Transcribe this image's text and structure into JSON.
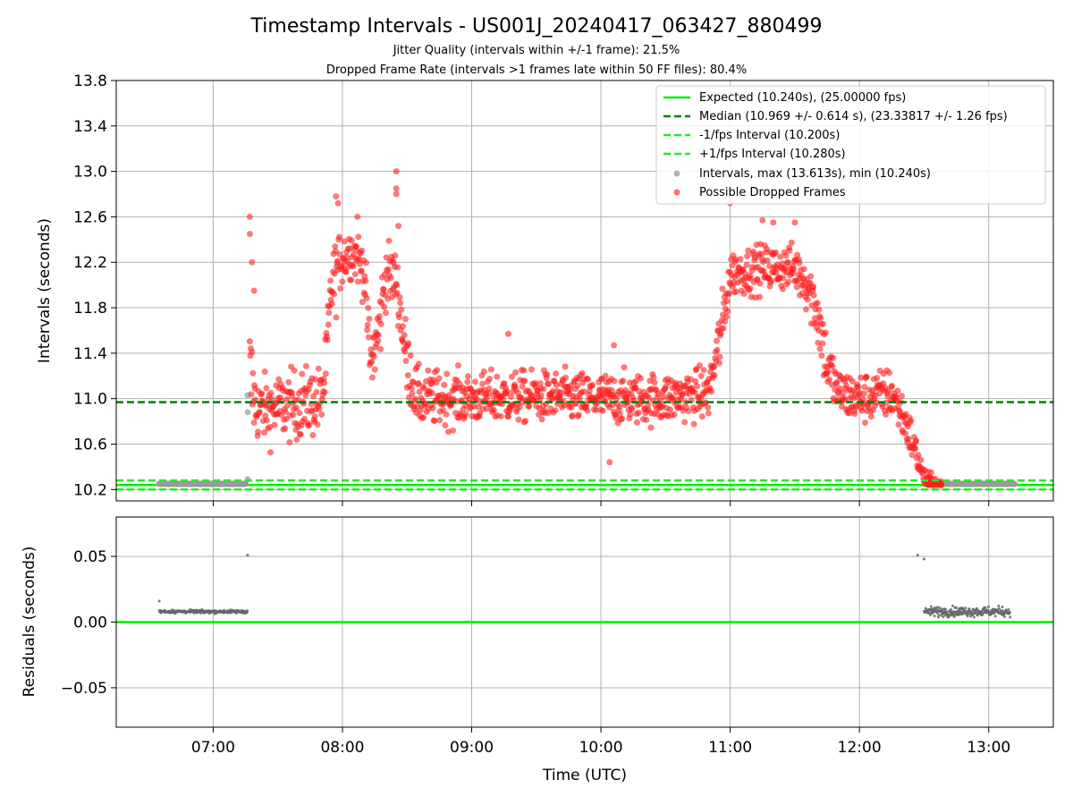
{
  "figure": {
    "title": "Timestamp Intervals - US001J_20240417_063427_880499",
    "subtitle_jitter": "Jitter Quality (intervals within +/-1 frame): 21.5%",
    "subtitle_dropped": "Dropped Frame Rate (intervals >1 frames late within 50 FF files): 80.4%"
  },
  "colors": {
    "expected": "#00ee00",
    "median": "#008000",
    "fps_interval": "#22ee22",
    "intervals": "#9a9a9a",
    "dropped": "#ff2020",
    "residuals": "#666666",
    "grid": "#b0b0b0"
  },
  "chart_data": [
    {
      "type": "scatter",
      "panel": "intervals",
      "xlabel": "",
      "ylabel": "Intervals (seconds)",
      "xlim": [
        "06:15",
        "13:30"
      ],
      "ylim": [
        10.1,
        13.8
      ],
      "yticks": [
        "10.2",
        "10.6",
        "11.0",
        "11.4",
        "11.8",
        "12.2",
        "12.6",
        "13.0",
        "13.4",
        "13.8"
      ],
      "grid": true,
      "legend_position": "top-right",
      "legend": [
        "Expected (10.240s), (25.00000 fps)",
        "Median (10.969 +/- 0.614 s), (23.33817 +/- 1.26 fps)",
        "-1/fps Interval (10.200s)",
        "+1/fps Interval (10.280s)",
        "Intervals, max (13.613s), min (10.240s)",
        "Possible Dropped Frames"
      ],
      "reference_lines": {
        "expected": 10.24,
        "median": 10.969,
        "minus_one_fps": 10.2,
        "plus_one_fps": 10.28
      },
      "series": [
        {
          "name": "Intervals, max (13.613s), min (10.240s)",
          "values": [
            [
              "06:35",
              10.25
            ],
            [
              "06:40",
              10.25
            ],
            [
              "06:45",
              10.25
            ],
            [
              "06:50",
              10.25
            ],
            [
              "06:55",
              10.25
            ],
            [
              "07:00",
              10.25
            ],
            [
              "07:05",
              10.25
            ],
            [
              "07:10",
              10.25
            ],
            [
              "07:15",
              10.25
            ],
            [
              "07:16",
              10.29
            ],
            [
              "07:16",
              10.88
            ],
            [
              "07:16",
              11.03
            ],
            [
              "12:35",
              10.25
            ],
            [
              "12:45",
              10.25
            ],
            [
              "12:55",
              10.25
            ],
            [
              "13:05",
              10.25
            ],
            [
              "13:12",
              10.25
            ]
          ]
        },
        {
          "name": "Possible Dropped Frames",
          "profile": [
            [
              "07:17",
              11.2,
              0.6
            ],
            [
              "07:20",
              10.9,
              0.28
            ],
            [
              "07:30",
              10.92,
              0.3
            ],
            [
              "07:40",
              10.95,
              0.3
            ],
            [
              "07:50",
              10.98,
              0.3
            ],
            [
              "07:52",
              11.2,
              0.3
            ],
            [
              "07:55",
              12.0,
              0.35
            ],
            [
              "08:00",
              12.25,
              0.25
            ],
            [
              "08:05",
              12.3,
              0.22
            ],
            [
              "08:10",
              12.15,
              0.25
            ],
            [
              "08:13",
              11.3,
              0.3
            ],
            [
              "08:17",
              11.6,
              0.35
            ],
            [
              "08:20",
              12.1,
              0.3
            ],
            [
              "08:25",
              12.05,
              0.25
            ],
            [
              "08:30",
              11.3,
              0.3
            ],
            [
              "08:35",
              11.0,
              0.25
            ],
            [
              "09:00",
              11.0,
              0.22
            ],
            [
              "09:30",
              11.02,
              0.22
            ],
            [
              "10:00",
              11.0,
              0.22
            ],
            [
              "10:30",
              11.0,
              0.22
            ],
            [
              "10:50",
              11.05,
              0.22
            ],
            [
              "10:56",
              11.6,
              0.3
            ],
            [
              "11:00",
              12.1,
              0.2
            ],
            [
              "11:15",
              12.15,
              0.2
            ],
            [
              "11:30",
              12.15,
              0.2
            ],
            [
              "11:35",
              12.05,
              0.25
            ],
            [
              "11:40",
              11.8,
              0.3
            ],
            [
              "11:45",
              11.3,
              0.3
            ],
            [
              "11:50",
              11.05,
              0.22
            ],
            [
              "12:00",
              11.0,
              0.22
            ],
            [
              "12:15",
              11.05,
              0.22
            ],
            [
              "12:20",
              10.85,
              0.2
            ],
            [
              "12:25",
              10.6,
              0.18
            ],
            [
              "12:30",
              10.3,
              0.08
            ],
            [
              "12:38",
              10.25,
              0.02
            ]
          ],
          "outliers": [
            [
              "07:17",
              12.6
            ],
            [
              "07:17",
              12.45
            ],
            [
              "07:18",
              12.2
            ],
            [
              "07:19",
              11.95
            ],
            [
              "07:57",
              12.78
            ],
            [
              "07:58",
              12.72
            ],
            [
              "08:07",
              12.6
            ],
            [
              "08:25",
              13.0
            ],
            [
              "08:25",
              12.85
            ],
            [
              "08:25",
              12.8
            ],
            [
              "08:26",
              12.52
            ],
            [
              "09:17",
              11.57
            ],
            [
              "10:04",
              10.44
            ],
            [
              "10:06",
              11.47
            ],
            [
              "11:00",
              12.72
            ],
            [
              "11:15",
              12.57
            ],
            [
              "11:20",
              12.55
            ],
            [
              "11:30",
              12.55
            ]
          ]
        }
      ]
    },
    {
      "type": "scatter",
      "panel": "residuals",
      "xlabel": "Time (UTC)",
      "ylabel": "Residuals (seconds)",
      "xlim": [
        "06:15",
        "13:30"
      ],
      "ylim": [
        -0.08,
        0.08
      ],
      "xticks": [
        "07:00",
        "08:00",
        "09:00",
        "10:00",
        "11:00",
        "12:00",
        "13:00"
      ],
      "yticks": [
        "0.05",
        "0.00",
        "−0.05"
      ],
      "grid": true,
      "zero_line": 0.0,
      "series": [
        {
          "name": "",
          "segments": [
            [
              "06:35",
              "07:16",
              0.008,
              0.001
            ],
            [
              "12:30",
              "13:10",
              0.008,
              0.003
            ]
          ],
          "points": [
            [
              "06:35",
              0.016
            ],
            [
              "07:16",
              0.051
            ],
            [
              "12:27",
              0.051
            ],
            [
              "12:30",
              0.048
            ]
          ]
        }
      ]
    }
  ]
}
